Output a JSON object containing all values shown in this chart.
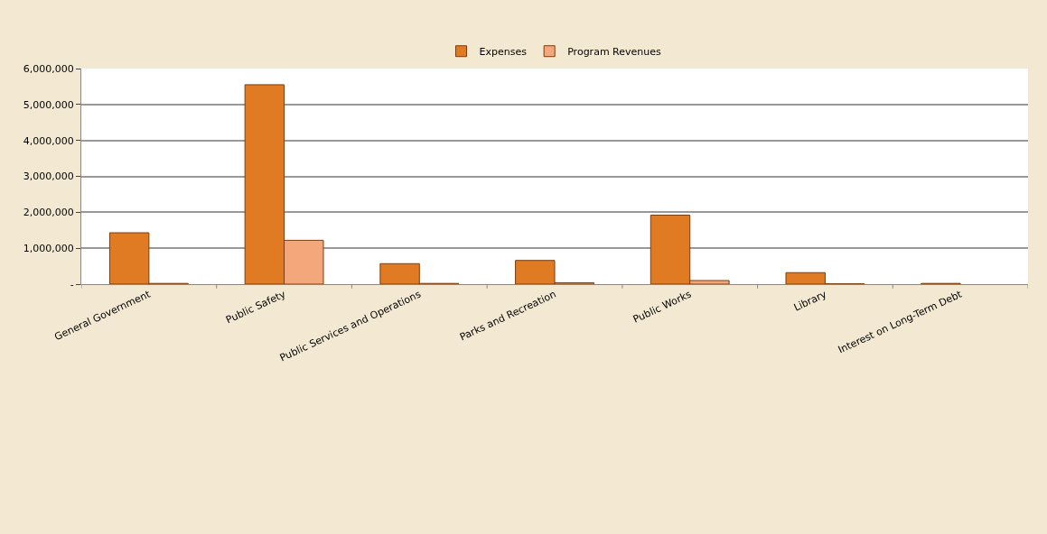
{
  "chart_data": {
    "type": "bar",
    "categories": [
      "General Government",
      "Public Safety",
      "Public Services and Operations",
      "Parks and Recreation",
      "Public Works",
      "Library",
      "Interest on Long-Term Debt"
    ],
    "series": [
      {
        "name": "Expenses",
        "color": "#e07b24",
        "values": [
          1430000,
          5550000,
          570000,
          660000,
          1920000,
          320000,
          20000
        ]
      },
      {
        "name": "Program Revenues",
        "color": "#f4a77a",
        "values": [
          20000,
          1220000,
          20000,
          40000,
          100000,
          10000,
          null
        ]
      }
    ],
    "ylim": [
      0,
      6000000
    ],
    "yticks": [
      {
        "value": 0,
        "label": "-"
      },
      {
        "value": 1000000,
        "label": "1,000,000"
      },
      {
        "value": 2000000,
        "label": "2,000,000"
      },
      {
        "value": 3000000,
        "label": "3,000,000"
      },
      {
        "value": 4000000,
        "label": "4,000,000"
      },
      {
        "value": 5000000,
        "label": "5,000,000"
      },
      {
        "value": 6000000,
        "label": "6,000,000"
      }
    ],
    "grid": "y",
    "legend": "top"
  }
}
